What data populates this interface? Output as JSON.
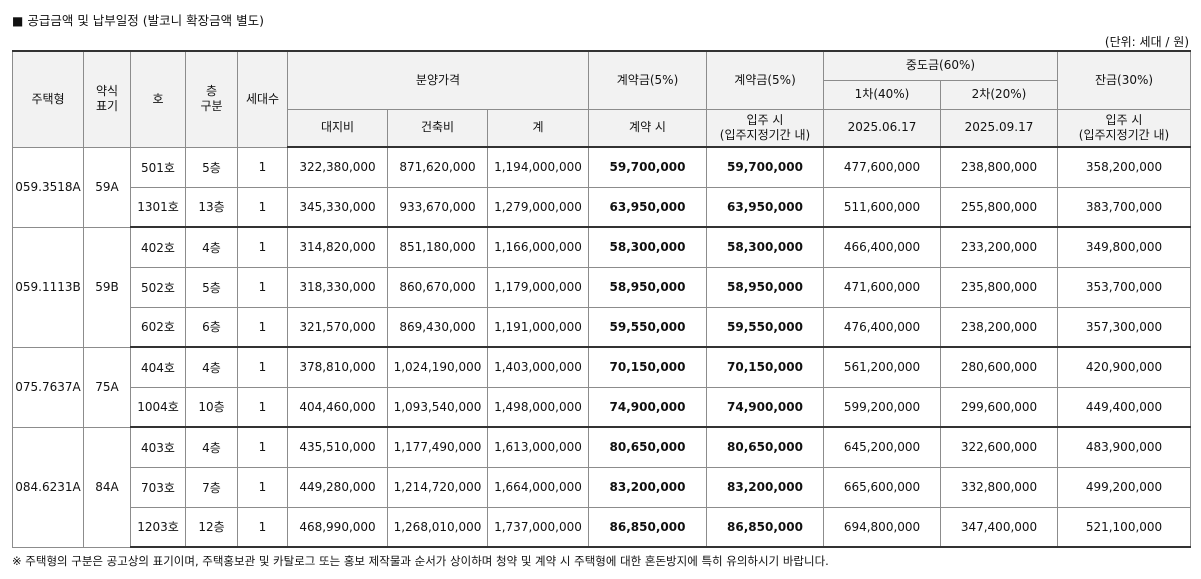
{
  "title": "공급금액 및 납부일정 (발코니 확장금액 별도)",
  "title_marker": "■",
  "unit_note": "(단위: 세대 / 원)",
  "headers": {
    "type": "주택형",
    "abbr": "약식\n표기",
    "unit_no": "호",
    "floor_group": "층\n구분",
    "households": "세대수",
    "price": "분양가격",
    "land": "대지비",
    "building": "건축비",
    "total": "계",
    "deposit1": "계약금(5%)",
    "deposit1_when": "계약 시",
    "deposit2": "계약금(5%)",
    "deposit2_when": "입주 시\n(입주지정기간 내)",
    "middle": "중도금(60%)",
    "middle1": "1차(40%)",
    "middle1_date": "2025.06.17",
    "middle2": "2차(20%)",
    "middle2_date": "2025.09.17",
    "balance": "잔금(30%)",
    "balance_when": "입주 시\n(입주지정기간 내)"
  },
  "groups": [
    {
      "type": "059.3518A",
      "abbr": "59A",
      "rows": [
        {
          "unit": "501호",
          "floor": "5층",
          "count": "1",
          "land": "322,380,000",
          "building": "871,620,000",
          "total": "1,194,000,000",
          "dep1": "59,700,000",
          "dep2": "59,700,000",
          "mid1": "477,600,000",
          "mid2": "238,800,000",
          "bal": "358,200,000"
        },
        {
          "unit": "1301호",
          "floor": "13층",
          "count": "1",
          "land": "345,330,000",
          "building": "933,670,000",
          "total": "1,279,000,000",
          "dep1": "63,950,000",
          "dep2": "63,950,000",
          "mid1": "511,600,000",
          "mid2": "255,800,000",
          "bal": "383,700,000"
        }
      ]
    },
    {
      "type": "059.1113B",
      "abbr": "59B",
      "rows": [
        {
          "unit": "402호",
          "floor": "4층",
          "count": "1",
          "land": "314,820,000",
          "building": "851,180,000",
          "total": "1,166,000,000",
          "dep1": "58,300,000",
          "dep2": "58,300,000",
          "mid1": "466,400,000",
          "mid2": "233,200,000",
          "bal": "349,800,000"
        },
        {
          "unit": "502호",
          "floor": "5층",
          "count": "1",
          "land": "318,330,000",
          "building": "860,670,000",
          "total": "1,179,000,000",
          "dep1": "58,950,000",
          "dep2": "58,950,000",
          "mid1": "471,600,000",
          "mid2": "235,800,000",
          "bal": "353,700,000"
        },
        {
          "unit": "602호",
          "floor": "6층",
          "count": "1",
          "land": "321,570,000",
          "building": "869,430,000",
          "total": "1,191,000,000",
          "dep1": "59,550,000",
          "dep2": "59,550,000",
          "mid1": "476,400,000",
          "mid2": "238,200,000",
          "bal": "357,300,000"
        }
      ]
    },
    {
      "type": "075.7637A",
      "abbr": "75A",
      "rows": [
        {
          "unit": "404호",
          "floor": "4층",
          "count": "1",
          "land": "378,810,000",
          "building": "1,024,190,000",
          "total": "1,403,000,000",
          "dep1": "70,150,000",
          "dep2": "70,150,000",
          "mid1": "561,200,000",
          "mid2": "280,600,000",
          "bal": "420,900,000"
        },
        {
          "unit": "1004호",
          "floor": "10층",
          "count": "1",
          "land": "404,460,000",
          "building": "1,093,540,000",
          "total": "1,498,000,000",
          "dep1": "74,900,000",
          "dep2": "74,900,000",
          "mid1": "599,200,000",
          "mid2": "299,600,000",
          "bal": "449,400,000"
        }
      ]
    },
    {
      "type": "084.6231A",
      "abbr": "84A",
      "rows": [
        {
          "unit": "403호",
          "floor": "4층",
          "count": "1",
          "land": "435,510,000",
          "building": "1,177,490,000",
          "total": "1,613,000,000",
          "dep1": "80,650,000",
          "dep2": "80,650,000",
          "mid1": "645,200,000",
          "mid2": "322,600,000",
          "bal": "483,900,000"
        },
        {
          "unit": "703호",
          "floor": "7층",
          "count": "1",
          "land": "449,280,000",
          "building": "1,214,720,000",
          "total": "1,664,000,000",
          "dep1": "83,200,000",
          "dep2": "83,200,000",
          "mid1": "665,600,000",
          "mid2": "332,800,000",
          "bal": "499,200,000"
        },
        {
          "unit": "1203호",
          "floor": "12층",
          "count": "1",
          "land": "468,990,000",
          "building": "1,268,010,000",
          "total": "1,737,000,000",
          "dep1": "86,850,000",
          "dep2": "86,850,000",
          "mid1": "694,800,000",
          "mid2": "347,400,000",
          "bal": "521,100,000"
        }
      ]
    }
  ],
  "footnote": "※ 주택형의 구분은 공고상의 표기이며, 주택홍보관 및 카탈로그 또는 홍보 제작물과 순서가 상이하며 청약 및 계약 시 주택형에 대한 혼돈방지에 특히 유의하시기 바랍니다."
}
